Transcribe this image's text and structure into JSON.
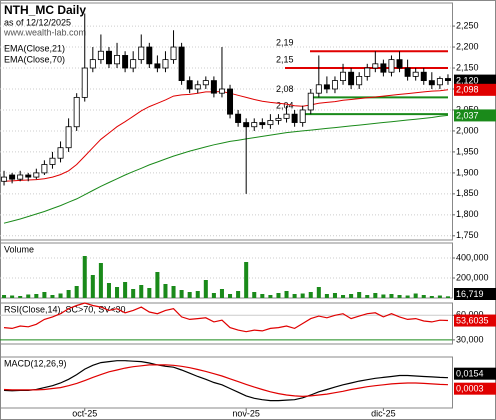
{
  "chart_data": [
    {
      "type": "candlestick",
      "title": "NTH_MC Daily",
      "subtitle": "as of 12/12/2025",
      "source": "www.wealth-lab.com",
      "categories": [
        null,
        null,
        null,
        null,
        null,
        null,
        null,
        null,
        null,
        null,
        "oct-25",
        null,
        null,
        null,
        null,
        null,
        null,
        null,
        null,
        null,
        null,
        null,
        null,
        null,
        null,
        null,
        null,
        null,
        null,
        null,
        "nov-25",
        null,
        null,
        null,
        null,
        null,
        null,
        null,
        null,
        null,
        null,
        null,
        null,
        null,
        null,
        null,
        null,
        "dic-25",
        null,
        null,
        null,
        null,
        null,
        null,
        null,
        null
      ],
      "open": [
        1880,
        1895,
        1885,
        1895,
        1890,
        1900,
        1920,
        1935,
        1960,
        2010,
        2080,
        2150,
        2170,
        2190,
        2160,
        2180,
        2150,
        2170,
        2200,
        2160,
        2150,
        2170,
        2200,
        2120,
        2100,
        2110,
        2120,
        2090,
        2100,
        2040,
        2020,
        2010,
        2020,
        2015,
        2025,
        2030,
        2040,
        2020,
        2050,
        2090,
        2110,
        2100,
        2120,
        2140,
        2110,
        2130,
        2150,
        2160,
        2140,
        2170,
        2150,
        2130,
        2140,
        2120,
        2110,
        2125
      ],
      "high": [
        1905,
        1900,
        1905,
        1900,
        1910,
        1930,
        1950,
        1975,
        2030,
        2090,
        2280,
        2200,
        2230,
        2200,
        2210,
        2190,
        2190,
        2230,
        2210,
        2180,
        2190,
        2240,
        2210,
        2130,
        2120,
        2130,
        2130,
        2200,
        2110,
        2050,
        2030,
        2030,
        2030,
        2040,
        2040,
        2060,
        2050,
        2060,
        2100,
        2180,
        2130,
        2130,
        2160,
        2150,
        2140,
        2160,
        2190,
        2170,
        2180,
        2190,
        2170,
        2150,
        2150,
        2140,
        2130,
        2135
      ],
      "low": [
        1870,
        1875,
        1880,
        1880,
        1885,
        1895,
        1910,
        1925,
        1950,
        2000,
        2070,
        2140,
        2160,
        2150,
        2150,
        2140,
        2140,
        2160,
        2150,
        2140,
        2140,
        2160,
        2110,
        2090,
        2090,
        2100,
        2080,
        2080,
        2030,
        2010,
        1850,
        2000,
        2005,
        2005,
        2015,
        2020,
        2010,
        2010,
        2040,
        2080,
        2090,
        2090,
        2110,
        2100,
        2100,
        2120,
        2140,
        2130,
        2130,
        2140,
        2120,
        2120,
        2110,
        2100,
        2100,
        2110
      ],
      "close": [
        1890,
        1885,
        1895,
        1890,
        1900,
        1920,
        1935,
        1960,
        2010,
        2080,
        2150,
        2170,
        2190,
        2160,
        2180,
        2150,
        2170,
        2200,
        2160,
        2150,
        2170,
        2200,
        2120,
        2100,
        2110,
        2120,
        2090,
        2100,
        2040,
        2020,
        2010,
        2020,
        2015,
        2025,
        2030,
        2040,
        2020,
        2050,
        2090,
        2110,
        2100,
        2120,
        2140,
        2110,
        2130,
        2150,
        2160,
        2140,
        2170,
        2150,
        2130,
        2140,
        2120,
        2110,
        2125,
        2120
      ],
      "last_label": "2,120",
      "series": [
        {
          "name": "EMA(Close,21)",
          "color": "#e00000",
          "last_label": "2,098",
          "values": [
            1880,
            1881,
            1882,
            1883,
            1884,
            1886,
            1890,
            1896,
            1905,
            1920,
            1940,
            1960,
            1980,
            1995,
            2010,
            2022,
            2035,
            2048,
            2058,
            2066,
            2074,
            2083,
            2086,
            2087,
            2090,
            2093,
            2093,
            2094,
            2090,
            2085,
            2080,
            2075,
            2071,
            2068,
            2066,
            2064,
            2060,
            2059,
            2062,
            2066,
            2068,
            2070,
            2073,
            2075,
            2077,
            2079,
            2081,
            2083,
            2085,
            2087,
            2089,
            2091,
            2093,
            2095,
            2096,
            2098
          ]
        },
        {
          "name": "EMA(Close,70)",
          "color": "#1a8a1a",
          "last_label": "2,037",
          "values": [
            1780,
            1785,
            1790,
            1796,
            1802,
            1808,
            1815,
            1822,
            1830,
            1838,
            1848,
            1858,
            1868,
            1877,
            1886,
            1895,
            1903,
            1911,
            1919,
            1926,
            1933,
            1940,
            1946,
            1952,
            1957,
            1962,
            1967,
            1971,
            1975,
            1978,
            1981,
            1984,
            1987,
            1990,
            1993,
            1996,
            1998,
            2000,
            2002,
            2004,
            2006,
            2008,
            2010,
            2012,
            2014,
            2016,
            2018,
            2020,
            2022,
            2024,
            2026,
            2028,
            2030,
            2032,
            2035,
            2037
          ]
        }
      ],
      "levels": [
        {
          "value": 2190,
          "label": "2,19",
          "color": "#e00000"
        },
        {
          "value": 2150,
          "label": "2,15",
          "color": "#e00000"
        },
        {
          "value": 2080,
          "label": "2,08",
          "color": "#1a8a1a"
        },
        {
          "value": 2040,
          "label": "2,04",
          "color": "#1a8a1a"
        }
      ],
      "ylim": [
        1740,
        2305
      ],
      "yticks": [
        {
          "value": 1750,
          "label": "1,750"
        },
        {
          "value": 1800,
          "label": "1,800"
        },
        {
          "value": 1850,
          "label": "1,850"
        },
        {
          "value": 1900,
          "label": "1,900"
        },
        {
          "value": 1950,
          "label": "1,950"
        },
        {
          "value": 2000,
          "label": "2,000"
        },
        {
          "value": 2050,
          "label": "2,050"
        },
        {
          "value": 2100,
          "label": "2,100"
        },
        {
          "value": 2150,
          "label": "2,150"
        },
        {
          "value": 2200,
          "label": "2,200"
        },
        {
          "value": 2250,
          "label": "2,250"
        }
      ],
      "grid": true
    },
    {
      "type": "bar",
      "title": "Volume",
      "color": "#1a8a1a",
      "last_label": "16,719",
      "values": [
        30000,
        25000,
        20000,
        35000,
        40000,
        60000,
        30000,
        45000,
        80000,
        120000,
        420000,
        230000,
        350000,
        150000,
        110000,
        160000,
        90000,
        130000,
        100000,
        260000,
        140000,
        120000,
        80000,
        60000,
        70000,
        180000,
        50000,
        90000,
        40000,
        70000,
        360000,
        60000,
        40000,
        30000,
        50000,
        70000,
        40000,
        45000,
        60000,
        110000,
        40000,
        50000,
        30000,
        40000,
        60000,
        30000,
        50000,
        35000,
        40000,
        30000,
        25000,
        45000,
        30000,
        20000,
        25000,
        16719
      ],
      "ylim": [
        0,
        550000
      ],
      "yticks": [
        {
          "value": 200000,
          "label": "200,000"
        },
        {
          "value": 400000,
          "label": "400,000"
        }
      ],
      "grid": true
    },
    {
      "type": "line",
      "title": "RSI(Close,14), SC>70, SV<30",
      "color": "#e00000",
      "last_label": "53,6035",
      "values": [
        45,
        44,
        47,
        46,
        49,
        55,
        58,
        62,
        68,
        72,
        75,
        72,
        70,
        66,
        68,
        63,
        66,
        70,
        64,
        62,
        66,
        68,
        58,
        55,
        56,
        57,
        52,
        54,
        45,
        42,
        40,
        42,
        41,
        44,
        45,
        47,
        44,
        50,
        56,
        59,
        57,
        60,
        62,
        56,
        59,
        62,
        63,
        58,
        62,
        58,
        55,
        56,
        53,
        52,
        54,
        53.6035
      ],
      "ylim": [
        25,
        75
      ],
      "yticks": [
        {
          "value": 60,
          "label": "60,000"
        },
        {
          "value": 30,
          "label": "30,000"
        }
      ],
      "grid": true
    },
    {
      "type": "line",
      "title": "MACD(12,26,9)",
      "series": [
        {
          "color": "#000000",
          "last_label": "0,0154",
          "values": [
            -0.012,
            -0.013,
            -0.012,
            -0.012,
            -0.01,
            -0.006,
            -0.002,
            0.004,
            0.012,
            0.022,
            0.034,
            0.042,
            0.048,
            0.05,
            0.052,
            0.052,
            0.051,
            0.05,
            0.047,
            0.043,
            0.04,
            0.038,
            0.032,
            0.025,
            0.018,
            0.012,
            0.005,
            0.0,
            -0.008,
            -0.016,
            -0.024,
            -0.029,
            -0.032,
            -0.034,
            -0.034,
            -0.033,
            -0.032,
            -0.028,
            -0.022,
            -0.015,
            -0.01,
            -0.005,
            0.0,
            0.004,
            0.008,
            0.011,
            0.014,
            0.016,
            0.018,
            0.02,
            0.02,
            0.019,
            0.018,
            0.017,
            0.016,
            0.0154
          ]
        },
        {
          "color": "#e00000",
          "last_label": "0,0003",
          "values": [
            -0.01,
            -0.011,
            -0.011,
            -0.011,
            -0.011,
            -0.01,
            -0.008,
            -0.006,
            -0.002,
            0.003,
            0.009,
            0.016,
            0.022,
            0.028,
            0.032,
            0.036,
            0.039,
            0.041,
            0.043,
            0.043,
            0.043,
            0.042,
            0.04,
            0.037,
            0.033,
            0.029,
            0.024,
            0.019,
            0.013,
            0.007,
            0.001,
            -0.005,
            -0.01,
            -0.015,
            -0.019,
            -0.022,
            -0.024,
            -0.025,
            -0.024,
            -0.022,
            -0.02,
            -0.017,
            -0.014,
            -0.01,
            -0.007,
            -0.004,
            -0.002,
            0.0,
            0.002,
            0.003,
            0.004,
            0.004,
            0.003,
            0.002,
            0.001,
            0.0003
          ]
        }
      ],
      "ylim": [
        -0.05,
        0.06
      ]
    }
  ]
}
